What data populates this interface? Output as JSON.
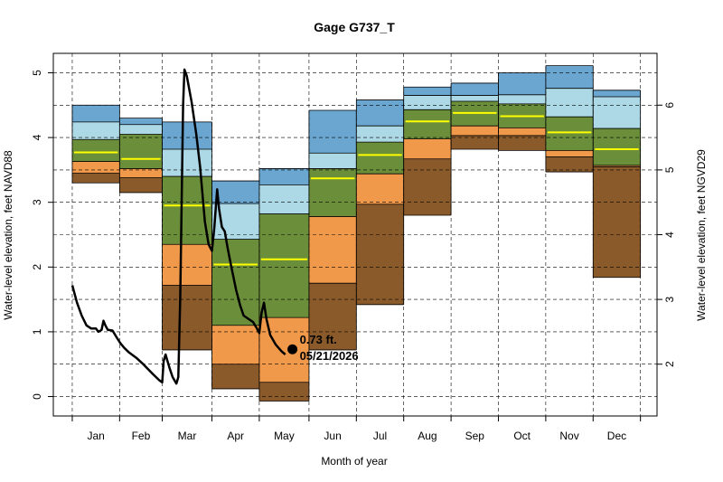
{
  "chart_data": {
    "type": "area",
    "title": "Gage G737_T",
    "xlabel": "Month of year",
    "ylabel": "Water-level elevation, feet NAVD88",
    "ylabel_right": "Water-level elevation, feet NGVD29",
    "ylim": [
      -0.3,
      5.3
    ],
    "yticks": [
      0,
      1,
      2,
      3,
      4,
      5
    ],
    "yticks_right": [
      2,
      3,
      4,
      5,
      6
    ],
    "datum_offset": 1.5,
    "grid": true,
    "months": [
      {
        "label": "Jan",
        "start": 0.0,
        "end": 1.0,
        "q": [
          3.3,
          3.45,
          3.63,
          3.77,
          3.97,
          4.24,
          4.5
        ],
        "median": 3.77
      },
      {
        "label": "Feb",
        "start": 1.0,
        "end": 1.9,
        "q": [
          3.15,
          3.38,
          3.52,
          3.67,
          4.05,
          4.2,
          4.3
        ],
        "median": 3.67
      },
      {
        "label": "Mar",
        "start": 1.9,
        "end": 2.95,
        "q": [
          0.72,
          1.72,
          2.35,
          2.95,
          3.4,
          3.82,
          4.24
        ],
        "median": 2.95
      },
      {
        "label": "Apr",
        "start": 2.95,
        "end": 3.95,
        "q": [
          0.12,
          0.5,
          1.1,
          2.04,
          2.43,
          2.98,
          3.33
        ],
        "median": 2.04
      },
      {
        "label": "May",
        "start": 3.95,
        "end": 5.0,
        "q": [
          -0.07,
          0.22,
          1.22,
          2.12,
          2.82,
          3.27,
          3.52
        ],
        "median": 2.12
      },
      {
        "label": "Jun",
        "start": 5.0,
        "end": 6.0,
        "q": [
          0.72,
          1.75,
          2.78,
          3.37,
          3.52,
          3.76,
          4.42
        ],
        "median": 3.37
      },
      {
        "label": "Jul",
        "start": 6.0,
        "end": 7.0,
        "q": [
          1.42,
          2.97,
          3.44,
          3.73,
          3.93,
          4.18,
          4.58
        ],
        "median": 3.73
      },
      {
        "label": "Aug",
        "start": 7.0,
        "end": 8.0,
        "q": [
          2.8,
          3.67,
          3.98,
          4.25,
          4.43,
          4.65,
          4.78
        ],
        "median": 4.25
      },
      {
        "label": "Sep",
        "start": 8.0,
        "end": 9.0,
        "q": [
          3.82,
          4.03,
          4.18,
          4.38,
          4.56,
          4.65,
          4.84
        ],
        "median": 4.38
      },
      {
        "label": "Oct",
        "start": 9.0,
        "end": 10.0,
        "q": [
          3.8,
          4.03,
          4.15,
          4.33,
          4.52,
          4.66,
          5.0
        ],
        "median": 4.33
      },
      {
        "label": "Nov",
        "start": 10.0,
        "end": 11.0,
        "q": [
          3.47,
          3.7,
          3.8,
          4.08,
          4.32,
          4.76,
          5.11
        ],
        "median": 4.08
      },
      {
        "label": "Dec",
        "start": 11.0,
        "end": 12.0,
        "q": [
          1.84,
          3.55,
          3.57,
          3.82,
          4.14,
          4.63,
          4.73
        ],
        "median": 3.82
      }
    ],
    "band_colors": [
      "#8B5A2B",
      "#F0994A",
      "#6B8E3A",
      "#6B8E3A",
      "#ADD8E6",
      "#6AA6D0"
    ],
    "median_color": "#FFFF00",
    "series": [
      {
        "line_color": "#000000",
        "points": [
          [
            0.0,
            1.72
          ],
          [
            0.1,
            1.45
          ],
          [
            0.2,
            1.25
          ],
          [
            0.3,
            1.1
          ],
          [
            0.4,
            1.05
          ],
          [
            0.5,
            1.05
          ],
          [
            0.55,
            1.0
          ],
          [
            0.62,
            1.03
          ],
          [
            0.66,
            1.17
          ],
          [
            0.7,
            1.1
          ],
          [
            0.75,
            1.03
          ],
          [
            0.85,
            1.02
          ],
          [
            0.95,
            0.9
          ],
          [
            1.02,
            0.82
          ],
          [
            1.1,
            0.75
          ],
          [
            1.2,
            0.68
          ],
          [
            1.35,
            0.6
          ],
          [
            1.5,
            0.5
          ],
          [
            1.7,
            0.35
          ],
          [
            1.84,
            0.25
          ],
          [
            1.9,
            0.22
          ],
          [
            1.93,
            0.55
          ],
          [
            1.97,
            0.65
          ],
          [
            2.05,
            0.45
          ],
          [
            2.12,
            0.3
          ],
          [
            2.2,
            0.2
          ],
          [
            2.24,
            0.3
          ],
          [
            2.28,
            1.5
          ],
          [
            2.31,
            3.0
          ],
          [
            2.34,
            4.5
          ],
          [
            2.37,
            5.05
          ],
          [
            2.42,
            4.95
          ],
          [
            2.52,
            4.55
          ],
          [
            2.62,
            4.05
          ],
          [
            2.7,
            3.55
          ],
          [
            2.8,
            2.7
          ],
          [
            2.88,
            2.35
          ],
          [
            2.95,
            2.25
          ],
          [
            3.0,
            2.6
          ],
          [
            3.03,
            2.9
          ],
          [
            3.06,
            3.2
          ],
          [
            3.1,
            2.9
          ],
          [
            3.16,
            2.62
          ],
          [
            3.22,
            2.55
          ],
          [
            3.28,
            2.3
          ],
          [
            3.36,
            2.0
          ],
          [
            3.46,
            1.65
          ],
          [
            3.55,
            1.4
          ],
          [
            3.62,
            1.25
          ],
          [
            3.72,
            1.2
          ],
          [
            3.82,
            1.15
          ],
          [
            3.9,
            1.05
          ],
          [
            3.95,
            0.98
          ],
          [
            4.0,
            1.3
          ],
          [
            4.05,
            1.45
          ],
          [
            4.1,
            1.2
          ],
          [
            4.18,
            0.95
          ],
          [
            4.3,
            0.8
          ],
          [
            4.42,
            0.7
          ],
          [
            4.5,
            0.65
          ]
        ],
        "last_point": {
          "x": 4.65,
          "y": 0.73,
          "label_value": "0.73 ft.",
          "label_date": "05/21/2026"
        }
      }
    ]
  }
}
